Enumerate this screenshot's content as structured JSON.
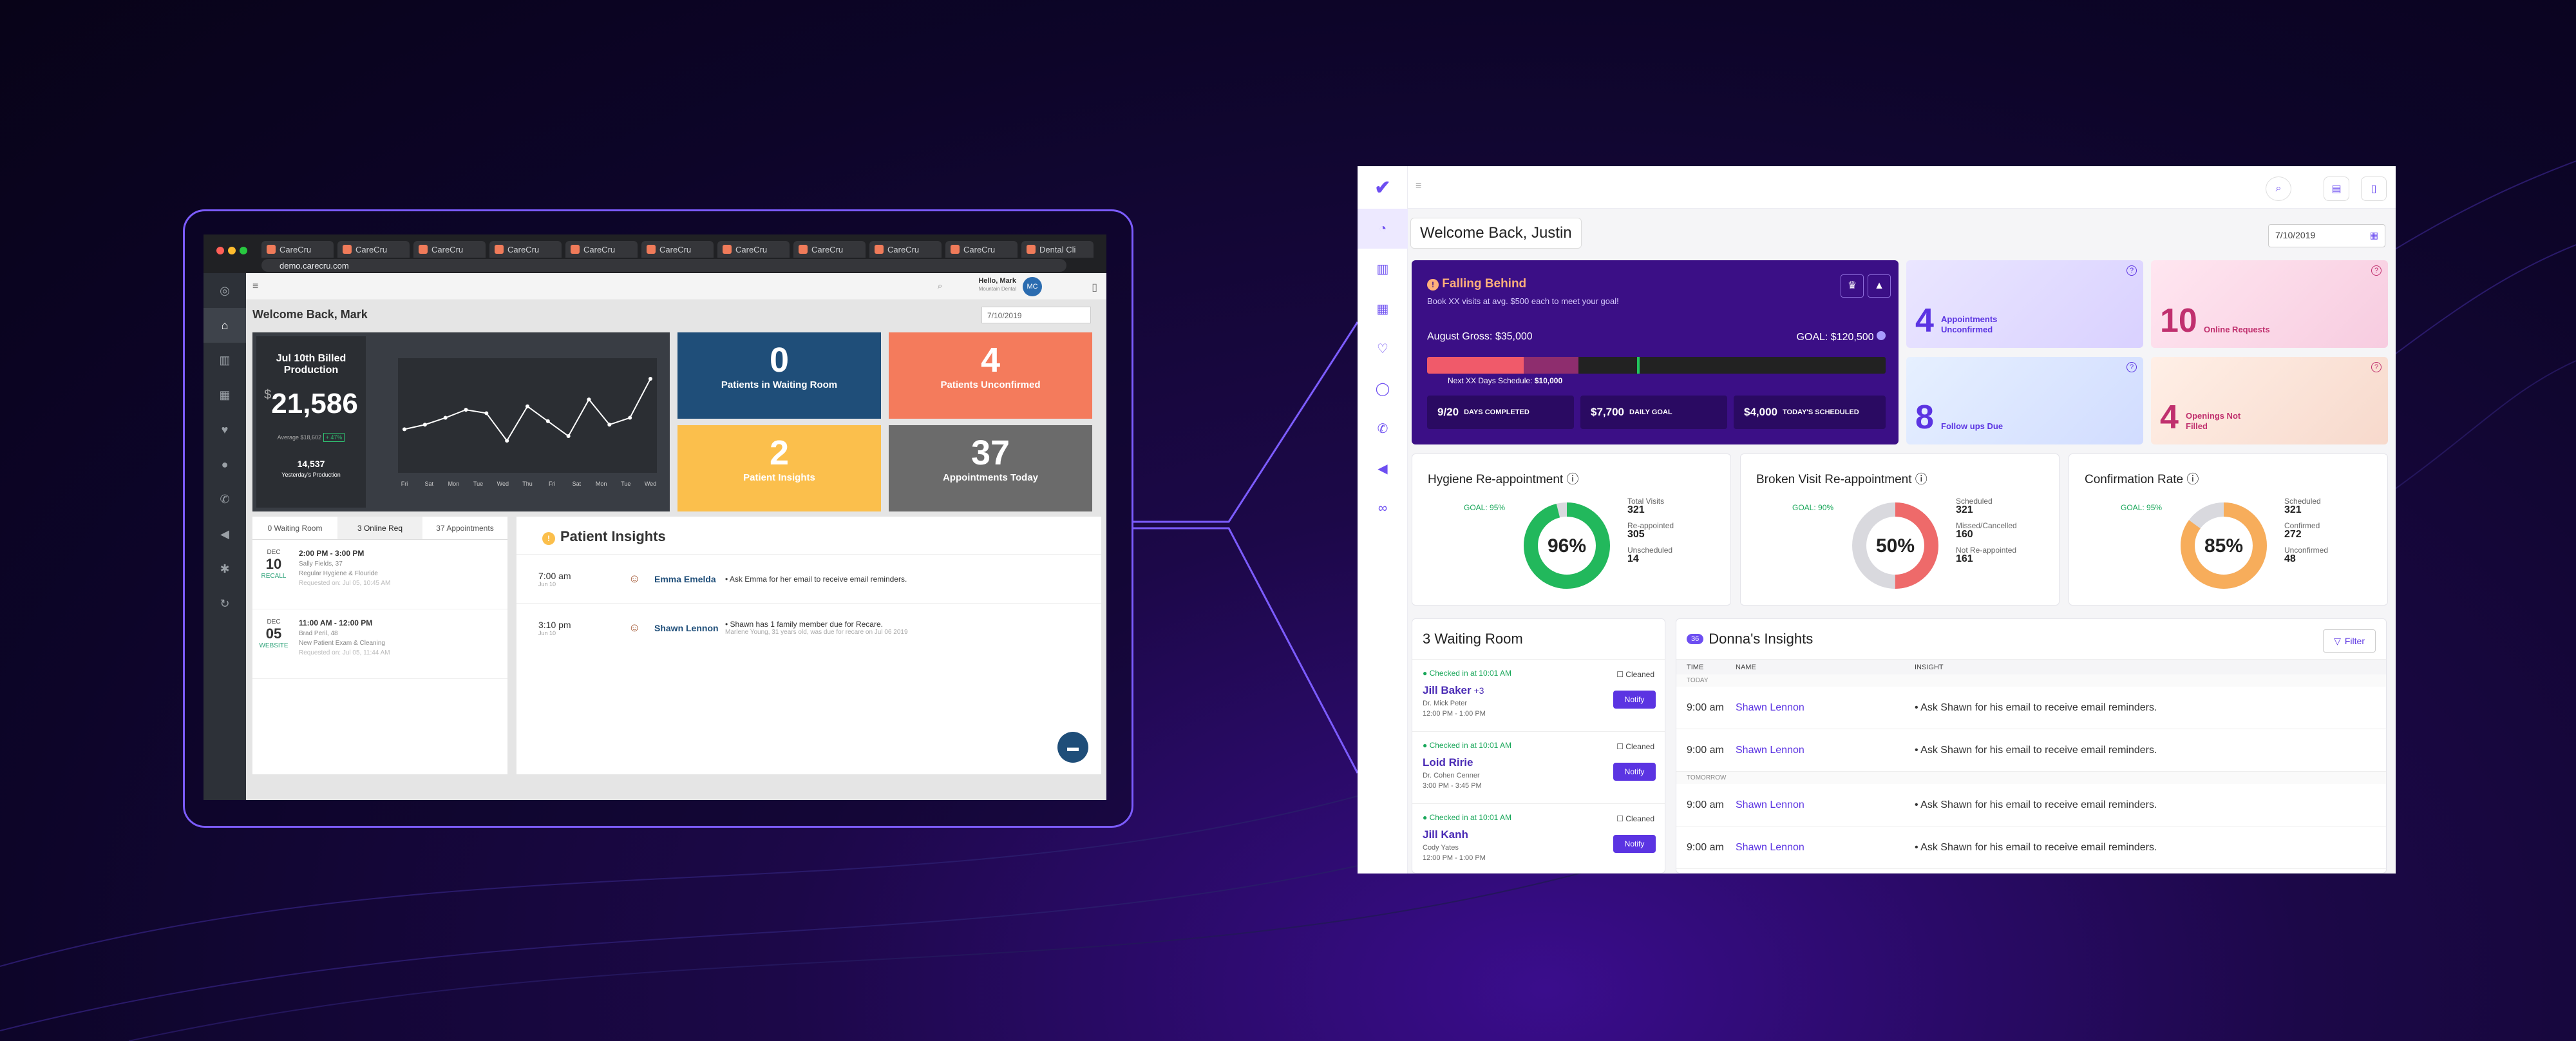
{
  "old": {
    "tabs": [
      "CareCru",
      "CareCru",
      "CareCru",
      "CareCru",
      "CareCru",
      "CareCru",
      "CareCru",
      "CareCru",
      "CareCru",
      "CareCru",
      "Dental Cli"
    ],
    "url": "demo.carecru.com",
    "greeting": "Hello, Mark",
    "user_sub": "Mountain Dental",
    "avatar": "MC",
    "title": "Welcome Back, Mark",
    "date": "7/10/2019",
    "billed_title": "Jul 10th Billed Production",
    "billed_currency": "$",
    "billed_value": "21,586",
    "billed_avg": "Average $18,602",
    "billed_change": "+ 47%",
    "yesterday_value": "14,537",
    "yesterday_label": "Yesterday's Production",
    "chart_x": [
      "Fri",
      "Sat",
      "Mon",
      "Tue",
      "Wed",
      "Thu",
      "Fri",
      "Sat",
      "Mon",
      "Tue",
      "Wed"
    ],
    "tiles": [
      {
        "value": "0",
        "label": "Patients in Waiting Room",
        "color": "#1f4e79"
      },
      {
        "value": "4",
        "label": "Patients Unconfirmed",
        "color": "#f47b5c"
      },
      {
        "value": "2",
        "label": "Patient Insights",
        "color": "#fbbf4c"
      },
      {
        "value": "37",
        "label": "Appointments Today",
        "color": "#6b6b6b"
      }
    ],
    "left_tabs": [
      "0 Waiting Room",
      "3 Online Req",
      "37 Appointments"
    ],
    "requests": [
      {
        "month": "DEC",
        "day": "10",
        "type": "RECALL",
        "time": "2:00 PM - 3:00 PM",
        "name": "Sally Fields, 37",
        "service": "Regular Hygiene & Flouride",
        "requested": "Requested on: Jul 05, 10:45 AM"
      },
      {
        "month": "DEC",
        "day": "05",
        "type": "WEBSITE",
        "time": "11:00 AM - 12:00 PM",
        "name": "Brad Peril, 48",
        "service": "New Patient Exam & Cleaning",
        "requested": "Requested on: Jul 05, 11:44 AM"
      }
    ],
    "insights_title": "Patient Insights",
    "insights": [
      {
        "time": "7:00 am",
        "date": "Jun 10",
        "name": "Emma Emelda",
        "text": "Ask Emma for her email to receive email reminders.",
        "sub": ""
      },
      {
        "time": "3:10 pm",
        "date": "Jun 10",
        "name": "Shawn Lennon",
        "text": "Shawn has 1 family member due for Recare.",
        "sub": "Marlene Young, 31 years old, was due for recare on Jul 06 2019"
      }
    ]
  },
  "new": {
    "title": "Welcome Back, Justin",
    "date": "7/10/2019",
    "falling": {
      "heading": "Falling Behind",
      "sub": "Book XX visits at avg. $500 each to meet your goal!",
      "gross": "August Gross: $35,000",
      "goal": "GOAL: $120,500",
      "next": "Next XX Days Schedule:",
      "next_value": "$10,000",
      "progress": 0.21,
      "scheduled": 0.12,
      "stats": [
        {
          "value": "9/20",
          "label": "DAYS COMPLETED"
        },
        {
          "value": "$7,700",
          "label": "DAILY GOAL"
        },
        {
          "value": "$4,000",
          "label": "TODAY'S SCHEDULED"
        }
      ]
    },
    "cards": [
      {
        "value": "4",
        "label": "Appointments Unconfirmed",
        "color": "#5b34e2"
      },
      {
        "value": "10",
        "label": "Online Requests",
        "color": "#c0306e"
      },
      {
        "value": "8",
        "label": "Follow ups Due",
        "color": "#5b34e2"
      },
      {
        "value": "4",
        "label": "Openings Not Filled",
        "color": "#c0306e"
      }
    ],
    "reappointment": [
      {
        "title": "Hygiene Re-appointment",
        "goal": "GOAL: 95%",
        "percent": 96,
        "color": "#22b85c",
        "track": "#d9d9de",
        "stats": [
          [
            "Total Visits",
            "321"
          ],
          [
            "Re-appointed",
            "305"
          ],
          [
            "Unscheduled",
            "14"
          ]
        ]
      },
      {
        "title": "Broken Visit Re-appointment",
        "goal": "GOAL: 90%",
        "percent": 50,
        "color": "#ee6a6a",
        "track": "#d9d9de",
        "stats": [
          [
            "Scheduled",
            "321"
          ],
          [
            "Missed/Cancelled",
            "160"
          ],
          [
            "Not Re-appointed",
            "161"
          ]
        ]
      },
      {
        "title": "Confirmation Rate",
        "goal": "GOAL: 95%",
        "percent": 85,
        "color": "#f7ad5b",
        "track": "#d9d9de",
        "stats": [
          [
            "Scheduled",
            "321"
          ],
          [
            "Confirmed",
            "272"
          ],
          [
            "Unconfirmed",
            "48"
          ]
        ]
      }
    ],
    "waiting": {
      "title": "3 Waiting Room",
      "items": [
        {
          "check": "Checked in at 10:01 AM",
          "name": "Jill Baker",
          "extra": "+3",
          "dr": "Dr. Mick Peter",
          "time": "12:00 PM - 1:00 PM"
        },
        {
          "check": "Checked in at 10:01 AM",
          "name": "Loid Ririe",
          "extra": "",
          "dr": "Dr. Cohen Cenner",
          "time": "3:00 PM - 3:45 PM"
        },
        {
          "check": "Checked in at 10:01 AM",
          "name": "Jill Kanh",
          "extra": "",
          "dr": "Cody Yates",
          "time": "12:00 PM - 1:00 PM"
        }
      ],
      "cleaned": "Cleaned",
      "notify": "Notify"
    },
    "insights": {
      "count": "36",
      "title": "Donna's Insights",
      "filter": "Filter",
      "cols": [
        "TIME",
        "NAME",
        "INSIGHT"
      ],
      "today": "TODAY",
      "tomorrow": "TOMORROW",
      "rows": [
        {
          "time": "9:00 am",
          "name": "Shawn Lennon",
          "text": "Ask Shawn for his email to receive email reminders."
        },
        {
          "time": "9:00 am",
          "name": "Shawn Lennon",
          "text": "Ask Shawn for his email to receive email reminders."
        },
        {
          "time": "9:00 am",
          "name": "Shawn Lennon",
          "text": "Ask Shawn for his email to receive email reminders."
        },
        {
          "time": "9:00 am",
          "name": "Shawn Lennon",
          "text": "Ask Shawn for his email to receive email reminders."
        }
      ]
    }
  }
}
